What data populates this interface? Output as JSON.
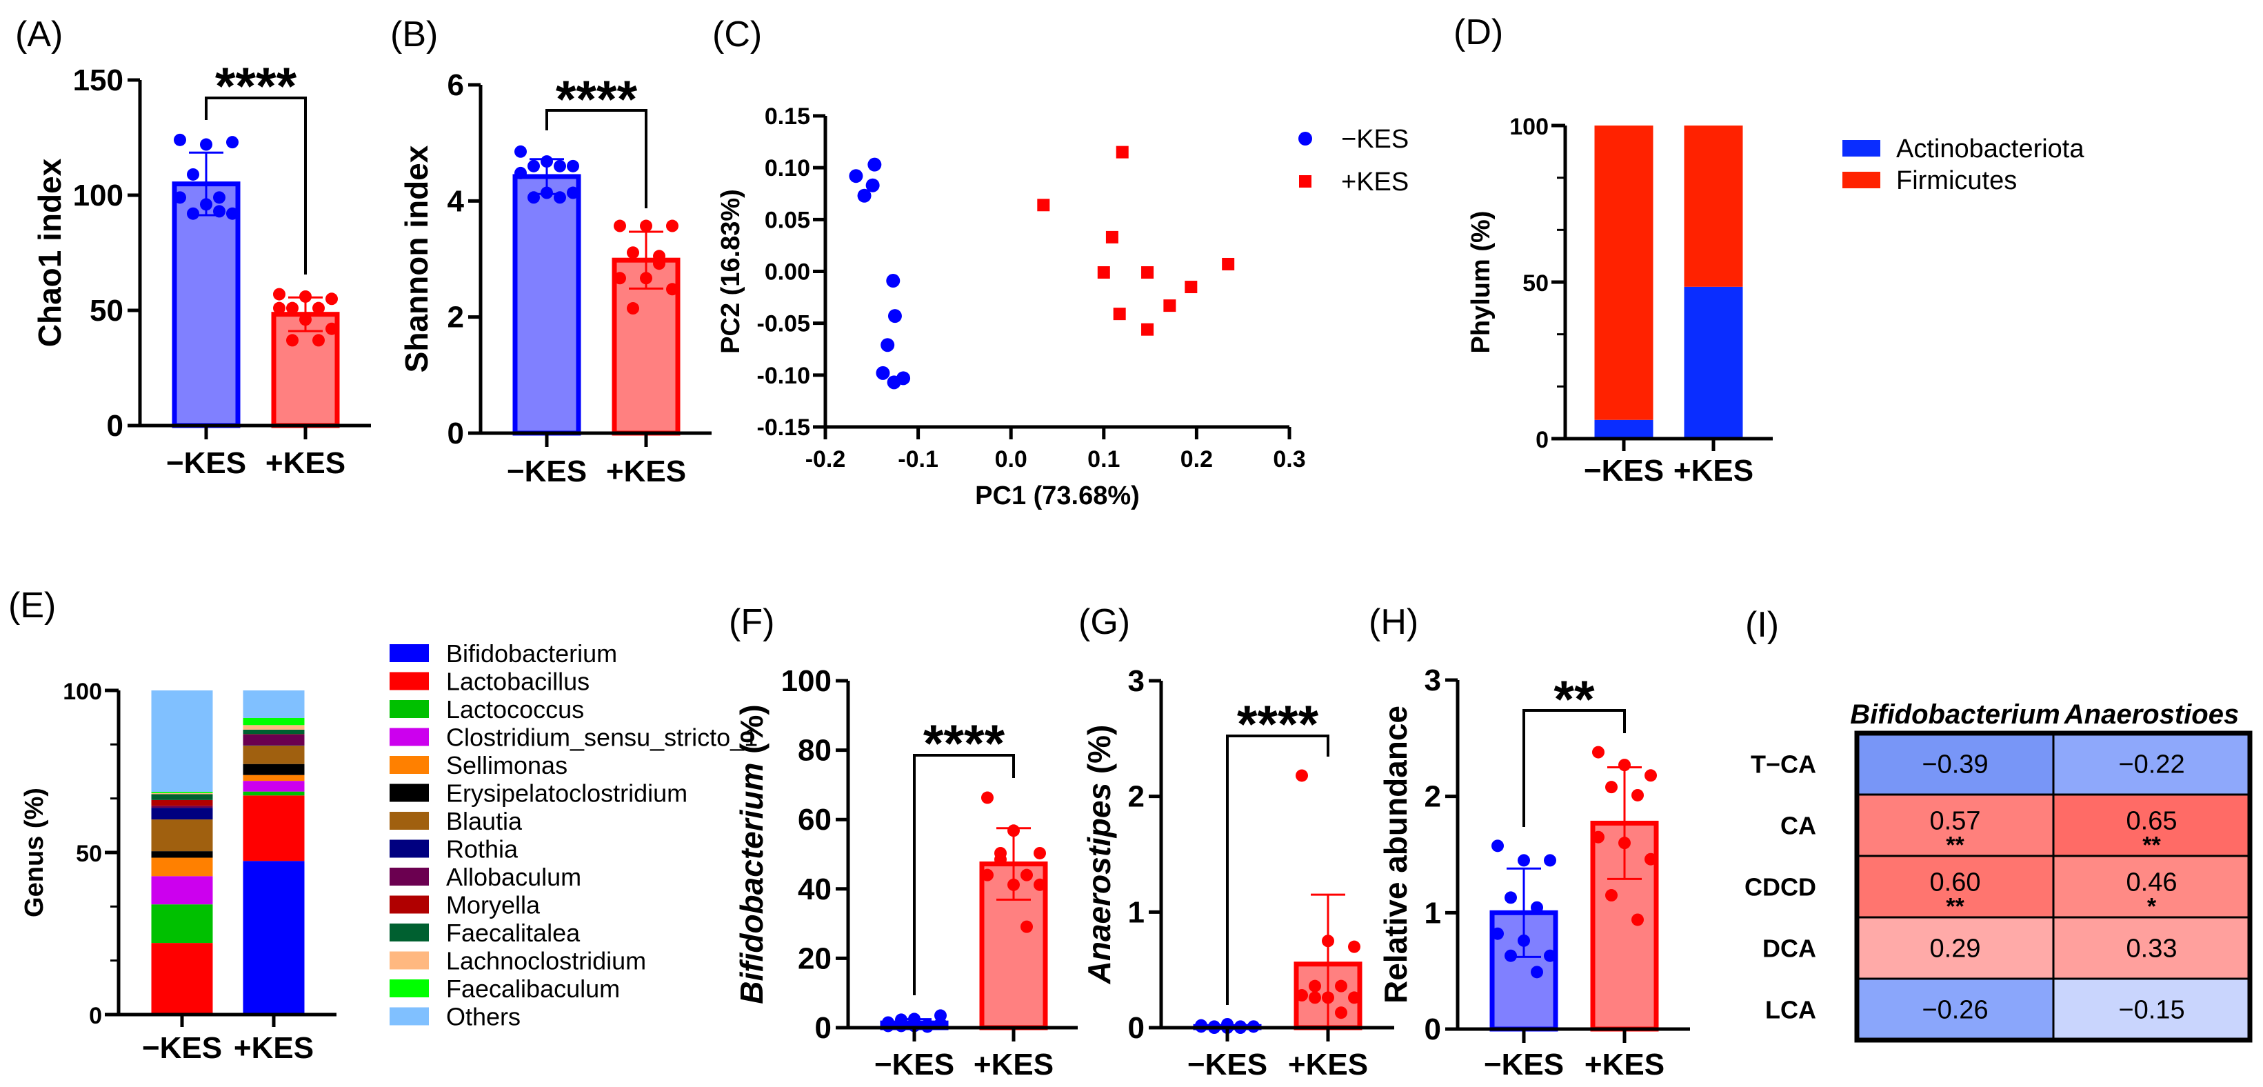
{
  "chart_data": [
    {
      "id": "A",
      "panel_label": "(A)",
      "type": "bar",
      "title": "",
      "xlabel": "",
      "ylabel": "Chao1 index",
      "ylim": [
        0,
        150
      ],
      "yticks": [
        0,
        50,
        100,
        150
      ],
      "categories": [
        "−KES",
        "+KES"
      ],
      "significance": "****",
      "groups": [
        {
          "name": "−KES",
          "color": "#0000ff",
          "fill": "#8080ff",
          "mean": 104.9,
          "sd": 13.6,
          "points": [
            124,
            122,
            123,
            109,
            99,
            99,
            96,
            92,
            92,
            93
          ]
        },
        {
          "name": "+KES",
          "color": "#ff0000",
          "fill": "#ff8080",
          "mean": 48.3,
          "sd": 7.3,
          "points": [
            57,
            56,
            55,
            51,
            51,
            51,
            46,
            42,
            37,
            37
          ]
        }
      ]
    },
    {
      "id": "B",
      "panel_label": "(B)",
      "type": "bar",
      "title": "",
      "xlabel": "",
      "ylabel": "Shannon index",
      "ylim": [
        0,
        6
      ],
      "yticks": [
        0,
        2,
        4,
        6
      ],
      "categories": [
        "−KES",
        "+KES"
      ],
      "significance": "****",
      "groups": [
        {
          "name": "−KES",
          "color": "#0000ff",
          "fill": "#8080ff",
          "mean": 4.42,
          "sd": 0.3,
          "points": [
            4.85,
            4.68,
            4.6,
            4.6,
            4.6,
            4.48,
            4.14,
            4.14,
            4.06,
            4.06
          ]
        },
        {
          "name": "+KES",
          "color": "#ff0000",
          "fill": "#ff8080",
          "mean": 2.98,
          "sd": 0.49,
          "points": [
            3.57,
            3.57,
            3.57,
            3.11,
            2.92,
            2.67,
            2.67,
            2.48,
            2.15,
            3.05
          ]
        }
      ]
    },
    {
      "id": "C",
      "panel_label": "(C)",
      "type": "scatter",
      "title": "",
      "xlabel": "PC1 (73.68%)",
      "ylabel": "PC2 (16.83%)",
      "xlim": [
        -0.2,
        0.3
      ],
      "ylim": [
        -0.15,
        0.15
      ],
      "xticks": [
        -0.2,
        -0.1,
        0.0,
        0.1,
        0.2,
        0.3
      ],
      "xtick_labels": [
        "-0.2",
        "-0.1",
        "0.0",
        "0.1",
        "0.2",
        "0.3"
      ],
      "yticks": [
        0.15,
        0.1,
        0.05,
        0.0,
        -0.05,
        -0.1,
        -0.15
      ],
      "ytick_labels": [
        "0.15",
        "0.10",
        "0.05",
        "0.00",
        "-0.05",
        "-0.10",
        "-0.15"
      ],
      "legend": "top-right",
      "series": [
        {
          "name": "−KES",
          "marker": "circle",
          "color": "#0000ff",
          "points": [
            [
              -0.167,
              0.092
            ],
            [
              -0.147,
              0.103
            ],
            [
              -0.149,
              0.083
            ],
            [
              -0.158,
              0.073
            ],
            [
              -0.127,
              -0.009
            ],
            [
              -0.125,
              -0.043
            ],
            [
              -0.133,
              -0.071
            ],
            [
              -0.138,
              -0.098
            ],
            [
              -0.126,
              -0.107
            ],
            [
              -0.116,
              -0.103
            ]
          ]
        },
        {
          "name": "+KES",
          "marker": "square",
          "color": "#ff0000",
          "points": [
            [
              0.12,
              0.115
            ],
            [
              0.035,
              0.064
            ],
            [
              0.109,
              0.033
            ],
            [
              0.1,
              -0.001
            ],
            [
              0.147,
              -0.001
            ],
            [
              0.234,
              0.007
            ],
            [
              0.194,
              -0.015
            ],
            [
              0.171,
              -0.033
            ],
            [
              0.117,
              -0.041
            ],
            [
              0.147,
              -0.056
            ]
          ]
        }
      ]
    },
    {
      "id": "D",
      "panel_label": "(D)",
      "type": "bar",
      "stacked": true,
      "title": "",
      "xlabel": "",
      "ylabel": "Phylum (%)",
      "ylim": [
        0,
        100
      ],
      "yticks": [
        0,
        50,
        100
      ],
      "categories": [
        "−KES",
        "+KES"
      ],
      "legend": "right",
      "series": [
        {
          "name": "Actinobacteriota",
          "color": "#0a2dff",
          "values": [
            6.0,
            48.5
          ]
        },
        {
          "name": "Firmicutes",
          "color": "#ff2200",
          "values": [
            94.0,
            51.5
          ]
        }
      ]
    },
    {
      "id": "E",
      "panel_label": "(E)",
      "type": "bar",
      "stacked": true,
      "title": "",
      "xlabel": "",
      "ylabel": "Genus (%)",
      "ylim": [
        0,
        100
      ],
      "yticks": [
        0,
        50,
        100
      ],
      "categories": [
        "−KES",
        "+KES"
      ],
      "legend": "right",
      "series": [
        {
          "name": "Bifidobacterium",
          "color": "#0000ff",
          "values": [
            0.5,
            47.4
          ]
        },
        {
          "name": "Lactobacillus",
          "color": "#ff0000",
          "values": [
            21.6,
            20.2
          ]
        },
        {
          "name": "Lactococcus",
          "color": "#00c000",
          "values": [
            11.9,
            1.2
          ]
        },
        {
          "name": "Clostridium_sensu_stricto_1",
          "color": "#cc00ee",
          "values": [
            8.7,
            3.3
          ]
        },
        {
          "name": "Sellimonas",
          "color": "#ff8000",
          "values": [
            5.7,
            1.8
          ]
        },
        {
          "name": "Erysipelatoclostridium",
          "color": "#000000",
          "values": [
            2.0,
            3.4
          ]
        },
        {
          "name": "Blautia",
          "color": "#a0600f",
          "values": [
            9.8,
            5.7
          ]
        },
        {
          "name": "Rothia",
          "color": "#000080",
          "values": [
            3.6,
            0.1
          ]
        },
        {
          "name": "Allobaculum",
          "color": "#6b0050",
          "values": [
            0.6,
            3.3
          ]
        },
        {
          "name": "Moryella",
          "color": "#b00000",
          "values": [
            1.8,
            0.1
          ]
        },
        {
          "name": "Faecalitalea",
          "color": "#006030",
          "values": [
            1.8,
            1.4
          ]
        },
        {
          "name": "Lachnoclostridium",
          "color": "#ffb880",
          "values": [
            0.3,
            1.4
          ]
        },
        {
          "name": "Faecalibaculum",
          "color": "#00ff00",
          "values": [
            0.4,
            2.2
          ]
        },
        {
          "name": "Others",
          "color": "#80c0ff",
          "values": [
            31.3,
            8.5
          ]
        }
      ]
    },
    {
      "id": "F",
      "panel_label": "(F)",
      "type": "bar",
      "title": "",
      "xlabel": "",
      "ylabel": "Bifidobacterium",
      "ylabel_unit": " (%)",
      "ylim": [
        0,
        100
      ],
      "yticks": [
        0,
        20,
        40,
        60,
        80,
        100
      ],
      "categories": [
        "−KES",
        "+KES"
      ],
      "significance": "****",
      "groups": [
        {
          "name": "−KES",
          "color": "#0000ff",
          "fill": "#8080ff",
          "mean": 1.36,
          "sd": 1.1,
          "points": [
            0.5,
            2.5,
            1.2,
            2.3,
            0.8,
            1.5,
            0.5,
            3.5,
            0.5,
            0.3
          ]
        },
        {
          "name": "+KES",
          "color": "#ff0000",
          "fill": "#ff8080",
          "mean": 47.2,
          "sd": 10.3,
          "points": [
            66.3,
            56.8,
            50.3,
            50.3,
            44.0,
            44.0,
            41.2,
            41.2,
            48.5,
            29.1
          ]
        }
      ]
    },
    {
      "id": "G",
      "panel_label": "(G)",
      "type": "bar",
      "title": "",
      "xlabel": "",
      "ylabel": "Anaerostipes",
      "ylabel_unit": " (%)",
      "ylim": [
        0,
        3
      ],
      "yticks": [
        0,
        1,
        2,
        3
      ],
      "categories": [
        "−KES",
        "+KES"
      ],
      "significance": "****",
      "groups": [
        {
          "name": "−KES",
          "color": "#0000ff",
          "fill": "#8080ff",
          "mean": 0.01,
          "sd": 0.01,
          "points": [
            0.02,
            0.03,
            0.01,
            0.01,
            0.0,
            0.01,
            0.0,
            0.01,
            0.0,
            0.01
          ]
        },
        {
          "name": "+KES",
          "color": "#ff0000",
          "fill": "#ff8080",
          "mean": 0.55,
          "sd": 0.6,
          "points": [
            2.18,
            0.75,
            0.7,
            0.36,
            0.36,
            0.28,
            0.26,
            0.26,
            0.26,
            0.13
          ]
        }
      ]
    },
    {
      "id": "H",
      "panel_label": "(H)",
      "type": "bar",
      "title": "",
      "xlabel": "",
      "ylabel": "Relative abundance",
      "ylim": [
        0,
        3
      ],
      "yticks": [
        0,
        1,
        2,
        3
      ],
      "categories": [
        "−KES",
        "+KES"
      ],
      "significance": "**",
      "groups": [
        {
          "name": "−KES",
          "color": "#0000ff",
          "fill": "#8080ff",
          "mean": 1.0,
          "sd": 0.38,
          "points": [
            1.575,
            1.45,
            1.45,
            1.13,
            1.045,
            0.82,
            0.76,
            0.63,
            0.63,
            0.49
          ]
        },
        {
          "name": "+KES",
          "color": "#ff0000",
          "fill": "#ff8080",
          "mean": 1.77,
          "sd": 0.48,
          "points": [
            2.38,
            2.27,
            2.18,
            2.08,
            2.01,
            1.65,
            1.6,
            1.46,
            1.15,
            0.94
          ]
        }
      ]
    },
    {
      "id": "I",
      "panel_label": "(I)",
      "type": "heatmap",
      "columns": [
        "Bifidobacterium",
        "Anaerostioes"
      ],
      "rows": [
        "T−CA",
        "CA",
        "CDCD",
        "DCA",
        "LCA"
      ],
      "values": [
        [
          "−0.39",
          "−0.22"
        ],
        [
          "0.57",
          "0.65"
        ],
        [
          "0.60",
          "0.46"
        ],
        [
          "0.29",
          "0.33"
        ],
        [
          "−0.26",
          "−0.15"
        ]
      ],
      "significance": [
        [
          "",
          ""
        ],
        [
          "**",
          "**"
        ],
        [
          "**",
          "*"
        ],
        [
          "",
          ""
        ],
        [
          "",
          ""
        ]
      ],
      "colors": [
        [
          "#7896f7",
          "#8ea8fb"
        ],
        [
          "#ff807c",
          "#ff6b66"
        ],
        [
          "#ff756f",
          "#ff8a85"
        ],
        [
          "#ffaaa8",
          "#ffa09d"
        ],
        [
          "#8aa6fb",
          "#c9d5fd"
        ]
      ]
    }
  ]
}
